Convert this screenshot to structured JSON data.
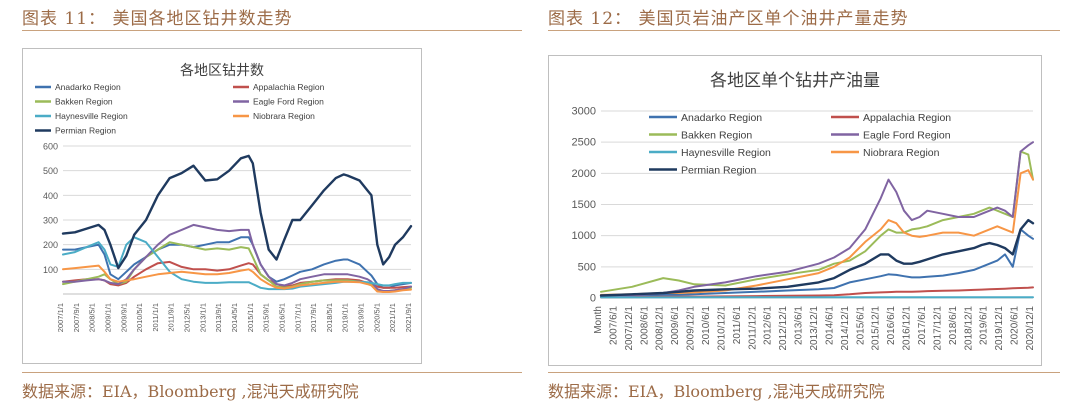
{
  "left_figure": {
    "caption": "图表 11： 美国各地区钻井数走势",
    "source": "数据来源：EIA，Bloomberg ,混沌天成研究院"
  },
  "right_figure": {
    "caption": "图表 12： 美国页岩油产区单个油井产量走势",
    "source": "数据来源：EIA，Bloomberg ,混沌天成研究院"
  },
  "colors": {
    "Anadarko Region": "#3f72af",
    "Appalachia Region": "#c0504d",
    "Bakken Region": "#9bbb59",
    "Eagle Ford Region": "#8064a2",
    "Haynesville Region": "#4bacc6",
    "Niobrara Region": "#f79646",
    "Permian Region": "#1f3a5f",
    "caption": "#9c6b47",
    "rule": "#c9a27e"
  },
  "chart_data": [
    {
      "type": "line",
      "title": "各地区钻井数",
      "xlabel": "",
      "ylabel": "",
      "ylim": [
        0,
        600
      ],
      "yticks": [
        100,
        200,
        300,
        400,
        500,
        600
      ],
      "legend": "top",
      "grid": true,
      "x": [
        2007.0,
        2007.5,
        2008.0,
        2008.5,
        2008.75,
        2009.0,
        2009.33,
        2009.67,
        2010.0,
        2010.5,
        2011.0,
        2011.5,
        2012.0,
        2012.5,
        2013.0,
        2013.5,
        2014.0,
        2014.5,
        2014.83,
        2015.0,
        2015.33,
        2015.67,
        2016.0,
        2016.33,
        2016.67,
        2017.0,
        2017.5,
        2018.0,
        2018.5,
        2018.83,
        2019.0,
        2019.5,
        2019.83,
        2020.0,
        2020.25,
        2020.5,
        2020.75,
        2021.0,
        2021.33,
        2021.67
      ],
      "x_tick_labels": [
        "2007/1/1",
        "2007/9/1",
        "2008/5/1",
        "2009/1/1",
        "2009/9/1",
        "2010/5/1",
        "2011/1/1",
        "2011/9/1",
        "2012/5/1",
        "2013/1/1",
        "2013/9/1",
        "2014/5/1",
        "2015/1/1",
        "2015/9/1",
        "2016/5/1",
        "2017/1/1",
        "2017/9/1",
        "2018/5/1",
        "2019/1/1",
        "2019/9/1",
        "2020/5/1",
        "2021/1/1",
        "2021/9/1"
      ],
      "series": [
        {
          "name": "Anadarko Region",
          "values": [
            180,
            180,
            190,
            200,
            160,
            80,
            60,
            90,
            120,
            150,
            180,
            200,
            200,
            190,
            200,
            210,
            210,
            230,
            230,
            200,
            120,
            70,
            50,
            60,
            75,
            90,
            100,
            120,
            135,
            140,
            140,
            120,
            90,
            75,
            40,
            25,
            25,
            35,
            40,
            45
          ]
        },
        {
          "name": "Appalachia Region",
          "values": [
            50,
            55,
            60,
            60,
            55,
            40,
            35,
            45,
            70,
            100,
            125,
            130,
            110,
            100,
            100,
            95,
            100,
            115,
            125,
            120,
            80,
            55,
            40,
            30,
            35,
            45,
            50,
            55,
            60,
            60,
            60,
            55,
            45,
            40,
            30,
            25,
            25,
            25,
            28,
            30
          ]
        },
        {
          "name": "Bakken Region",
          "values": [
            40,
            50,
            60,
            70,
            80,
            60,
            40,
            50,
            100,
            150,
            180,
            210,
            200,
            190,
            180,
            185,
            180,
            190,
            185,
            150,
            80,
            55,
            30,
            25,
            30,
            40,
            50,
            55,
            55,
            55,
            55,
            50,
            45,
            40,
            15,
            10,
            12,
            15,
            20,
            25
          ]
        },
        {
          "name": "Eagle Ford Region",
          "values": [
            50,
            50,
            55,
            60,
            55,
            45,
            40,
            60,
            100,
            150,
            200,
            240,
            260,
            280,
            270,
            260,
            255,
            260,
            260,
            200,
            120,
            70,
            40,
            35,
            45,
            60,
            70,
            80,
            80,
            80,
            80,
            70,
            60,
            50,
            20,
            12,
            12,
            15,
            20,
            30
          ]
        },
        {
          "name": "Haynesville Region",
          "values": [
            160,
            170,
            190,
            210,
            180,
            120,
            110,
            200,
            230,
            210,
            150,
            90,
            60,
            50,
            45,
            45,
            48,
            48,
            48,
            40,
            25,
            20,
            20,
            20,
            22,
            30,
            35,
            40,
            45,
            50,
            50,
            50,
            48,
            45,
            40,
            35,
            35,
            40,
            45,
            45
          ]
        },
        {
          "name": "Niobrara Region",
          "values": [
            100,
            105,
            110,
            115,
            90,
            60,
            50,
            55,
            60,
            70,
            80,
            85,
            90,
            85,
            80,
            80,
            85,
            95,
            100,
            90,
            60,
            40,
            25,
            22,
            28,
            35,
            40,
            45,
            50,
            50,
            50,
            48,
            40,
            35,
            10,
            8,
            8,
            10,
            15,
            18
          ]
        },
        {
          "name": "Permian Region",
          "values": [
            245,
            250,
            265,
            280,
            260,
            200,
            105,
            155,
            240,
            300,
            400,
            470,
            490,
            520,
            460,
            465,
            500,
            550,
            560,
            530,
            330,
            180,
            140,
            220,
            300,
            300,
            360,
            420,
            470,
            485,
            480,
            460,
            420,
            400,
            200,
            120,
            150,
            200,
            230,
            275
          ]
        }
      ]
    },
    {
      "type": "line",
      "title": "各地区单个钻井产油量",
      "xlabel": "Month",
      "ylabel": "",
      "ylim": [
        0,
        3000
      ],
      "yticks": [
        0,
        500,
        1000,
        1500,
        2000,
        2500,
        3000
      ],
      "legend": "top",
      "grid": true,
      "x": [
        2007.0,
        2008.0,
        2009.0,
        2009.5,
        2010.0,
        2011.0,
        2012.0,
        2013.0,
        2014.0,
        2014.5,
        2015.0,
        2015.5,
        2016.0,
        2016.25,
        2016.5,
        2016.75,
        2017.0,
        2017.25,
        2017.5,
        2018.0,
        2018.5,
        2019.0,
        2019.25,
        2019.5,
        2019.75,
        2020.0,
        2020.25,
        2020.5,
        2020.75,
        2020.9
      ],
      "x_tick_labels": [
        "Month",
        "2007/6/1",
        "2007/12/1",
        "2008/6/1",
        "2008/12/1",
        "2009/6/1",
        "2009/12/1",
        "2010/6/1",
        "2010/12/1",
        "2011/6/1",
        "2011/12/1",
        "2012/6/1",
        "2012/12/1",
        "2013/6/1",
        "2013/12/1",
        "2014/6/1",
        "2014/12/1",
        "2015/6/1",
        "2015/12/1",
        "2016/6/1",
        "2016/12/1",
        "2017/6/1",
        "2017/12/1",
        "2018/6/1",
        "2018/12/1",
        "2019/6/1",
        "2019/12/1",
        "2020/6/1",
        "2020/12/1"
      ],
      "series": [
        {
          "name": "Anadarko Region",
          "values": [
            30,
            40,
            50,
            50,
            60,
            80,
            100,
            120,
            140,
            160,
            250,
            300,
            350,
            380,
            370,
            350,
            330,
            330,
            340,
            360,
            400,
            450,
            500,
            550,
            600,
            700,
            500,
            1100,
            1000,
            950
          ]
        },
        {
          "name": "Appalachia Region",
          "values": [
            10,
            15,
            20,
            20,
            22,
            25,
            30,
            35,
            40,
            45,
            60,
            80,
            90,
            95,
            100,
            100,
            100,
            105,
            110,
            115,
            120,
            130,
            135,
            140,
            145,
            150,
            155,
            160,
            165,
            170
          ]
        },
        {
          "name": "Bakken Region",
          "values": [
            100,
            180,
            320,
            280,
            220,
            200,
            300,
            380,
            450,
            550,
            600,
            750,
            1000,
            1100,
            1050,
            1050,
            1100,
            1120,
            1150,
            1250,
            1300,
            1350,
            1400,
            1450,
            1400,
            1350,
            1300,
            2350,
            2300,
            1900
          ]
        },
        {
          "name": "Eagle Ford Region",
          "values": [
            20,
            40,
            80,
            120,
            180,
            250,
            350,
            420,
            550,
            650,
            800,
            1100,
            1600,
            1900,
            1700,
            1400,
            1250,
            1300,
            1400,
            1350,
            1300,
            1300,
            1350,
            1400,
            1450,
            1400,
            1300,
            2350,
            2450,
            2500
          ]
        },
        {
          "name": "Haynesville Region",
          "values": [
            10,
            10,
            10,
            10,
            12,
            12,
            12,
            12,
            12,
            12,
            12,
            12,
            12,
            12,
            12,
            12,
            12,
            12,
            12,
            12,
            12,
            12,
            12,
            12,
            12,
            12,
            12,
            12,
            12,
            12
          ]
        },
        {
          "name": "Niobrara Region",
          "values": [
            50,
            60,
            80,
            80,
            90,
            120,
            200,
            300,
            400,
            500,
            650,
            900,
            1100,
            1250,
            1200,
            1050,
            1000,
            980,
            1000,
            1050,
            1050,
            1000,
            1050,
            1100,
            1150,
            1100,
            1050,
            2000,
            2050,
            1900
          ]
        },
        {
          "name": "Permian Region",
          "values": [
            40,
            60,
            80,
            100,
            120,
            140,
            150,
            180,
            250,
            320,
            450,
            550,
            700,
            700,
            600,
            550,
            550,
            580,
            620,
            700,
            750,
            800,
            850,
            880,
            850,
            800,
            700,
            1100,
            1250,
            1200
          ]
        }
      ]
    }
  ]
}
